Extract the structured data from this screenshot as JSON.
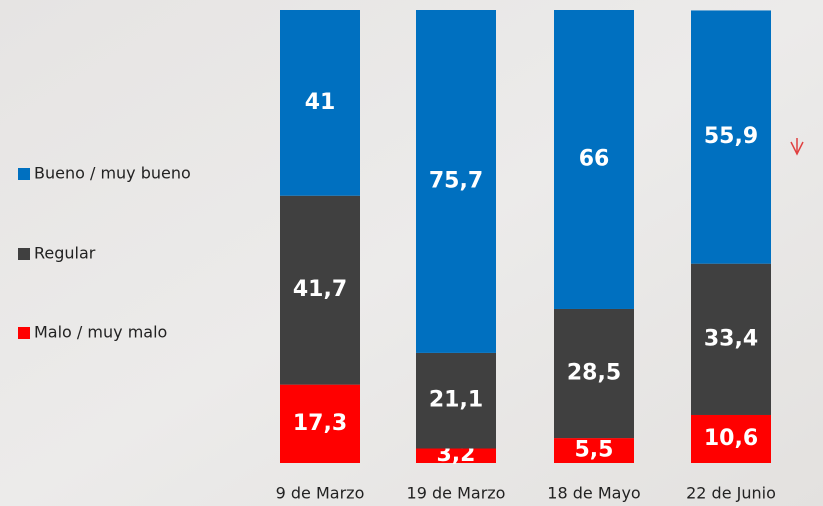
{
  "chart_data": {
    "type": "bar",
    "stacked": true,
    "categories": [
      "9 de Marzo",
      "19 de Marzo",
      "18 de Mayo",
      "22 de Junio"
    ],
    "ylim": [
      0,
      100
    ],
    "series": [
      {
        "name": "Bueno / muy bueno",
        "color": "#0070c0",
        "values": [
          41,
          75.7,
          66,
          55.9
        ],
        "value_labels": [
          "41",
          "75,7",
          "66",
          "55,9"
        ]
      },
      {
        "name": "Regular",
        "color": "#404040",
        "values": [
          41.7,
          21.1,
          28.5,
          33.4
        ],
        "value_labels": [
          "41,7",
          "21,1",
          "28,5",
          "33,4"
        ]
      },
      {
        "name": "Malo / muy malo",
        "color": "#ff0000",
        "values": [
          17.3,
          3.2,
          5.5,
          10.6
        ],
        "value_labels": [
          "17,3",
          "3,2",
          "5,5",
          "10,6"
        ]
      }
    ]
  }
}
